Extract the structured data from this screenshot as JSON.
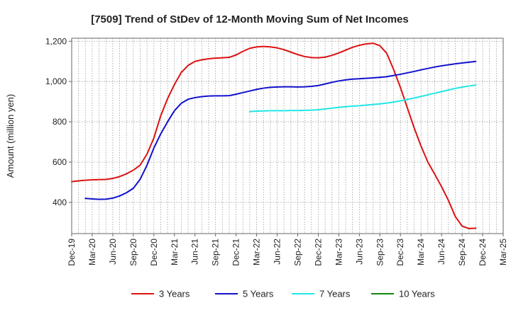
{
  "chart_data": {
    "type": "line",
    "title": "[7509]  Trend of StDev of 12-Month Moving Sum of Net Incomes",
    "xlabel": "",
    "ylabel": "Amount (million yen)",
    "ylim": [
      245,
      1215
    ],
    "yticks": [
      400,
      600,
      800,
      1000,
      1200
    ],
    "ytick_labels": [
      "400",
      "600",
      "800",
      "1,000",
      "1,200"
    ],
    "xlim": [
      "2019-12",
      "2025-03"
    ],
    "xtick_labels": [
      "Dec-19",
      "Mar-20",
      "Jun-20",
      "Sep-20",
      "Dec-20",
      "Mar-21",
      "Jun-21",
      "Sep-21",
      "Dec-21",
      "Mar-22",
      "Jun-22",
      "Sep-22",
      "Dec-22",
      "Mar-23",
      "Jun-23",
      "Sep-23",
      "Dec-23",
      "Mar-24",
      "Jun-24",
      "Sep-24",
      "Dec-24",
      "Mar-25"
    ],
    "grid": true,
    "legend_position": "bottom",
    "series": [
      {
        "name": "3 Years",
        "color": "#dd1111",
        "points": [
          [
            "2019-12",
            503
          ],
          [
            "2020-01",
            507
          ],
          [
            "2020-02",
            510
          ],
          [
            "2020-03",
            512
          ],
          [
            "2020-04",
            513
          ],
          [
            "2020-05",
            514
          ],
          [
            "2020-06",
            519
          ],
          [
            "2020-07",
            528
          ],
          [
            "2020-08",
            542
          ],
          [
            "2020-09",
            560
          ],
          [
            "2020-10",
            585
          ],
          [
            "2020-11",
            640
          ],
          [
            "2020-12",
            720
          ],
          [
            "2021-01",
            830
          ],
          [
            "2021-02",
            915
          ],
          [
            "2021-03",
            985
          ],
          [
            "2021-04",
            1045
          ],
          [
            "2021-05",
            1080
          ],
          [
            "2021-06",
            1100
          ],
          [
            "2021-07",
            1108
          ],
          [
            "2021-08",
            1113
          ],
          [
            "2021-09",
            1116
          ],
          [
            "2021-10",
            1118
          ],
          [
            "2021-11",
            1120
          ],
          [
            "2021-12",
            1132
          ],
          [
            "2022-01",
            1150
          ],
          [
            "2022-02",
            1165
          ],
          [
            "2022-03",
            1172
          ],
          [
            "2022-04",
            1174
          ],
          [
            "2022-05",
            1172
          ],
          [
            "2022-06",
            1167
          ],
          [
            "2022-07",
            1158
          ],
          [
            "2022-08",
            1146
          ],
          [
            "2022-09",
            1134
          ],
          [
            "2022-10",
            1124
          ],
          [
            "2022-11",
            1119
          ],
          [
            "2022-12",
            1118
          ],
          [
            "2023-01",
            1121
          ],
          [
            "2023-02",
            1130
          ],
          [
            "2023-03",
            1142
          ],
          [
            "2023-04",
            1156
          ],
          [
            "2023-05",
            1170
          ],
          [
            "2023-06",
            1180
          ],
          [
            "2023-07",
            1187
          ],
          [
            "2023-08",
            1190
          ],
          [
            "2023-09",
            1178
          ],
          [
            "2023-10",
            1140
          ],
          [
            "2023-11",
            1060
          ],
          [
            "2023-12",
            970
          ],
          [
            "2024-01",
            870
          ],
          [
            "2024-02",
            770
          ],
          [
            "2024-03",
            680
          ],
          [
            "2024-04",
            600
          ],
          [
            "2024-05",
            540
          ],
          [
            "2024-06",
            478
          ],
          [
            "2024-07",
            410
          ],
          [
            "2024-08",
            330
          ],
          [
            "2024-09",
            282
          ],
          [
            "2024-10",
            270
          ],
          [
            "2024-11",
            272
          ]
        ]
      },
      {
        "name": "5 Years",
        "color": "#1111cc",
        "points": [
          [
            "2020-02",
            420
          ],
          [
            "2020-03",
            417
          ],
          [
            "2020-04",
            415
          ],
          [
            "2020-05",
            416
          ],
          [
            "2020-06",
            421
          ],
          [
            "2020-07",
            432
          ],
          [
            "2020-08",
            448
          ],
          [
            "2020-09",
            470
          ],
          [
            "2020-10",
            515
          ],
          [
            "2020-11",
            585
          ],
          [
            "2020-12",
            670
          ],
          [
            "2021-01",
            740
          ],
          [
            "2021-02",
            800
          ],
          [
            "2021-03",
            855
          ],
          [
            "2021-04",
            892
          ],
          [
            "2021-05",
            912
          ],
          [
            "2021-06",
            920
          ],
          [
            "2021-07",
            925
          ],
          [
            "2021-08",
            928
          ],
          [
            "2021-09",
            929
          ],
          [
            "2021-10",
            929
          ],
          [
            "2021-11",
            930
          ],
          [
            "2021-12",
            937
          ],
          [
            "2022-01",
            945
          ],
          [
            "2022-02",
            953
          ],
          [
            "2022-03",
            961
          ],
          [
            "2022-04",
            967
          ],
          [
            "2022-05",
            971
          ],
          [
            "2022-06",
            973
          ],
          [
            "2022-07",
            974
          ],
          [
            "2022-08",
            974
          ],
          [
            "2022-09",
            973
          ],
          [
            "2022-10",
            974
          ],
          [
            "2022-11",
            976
          ],
          [
            "2022-12",
            980
          ],
          [
            "2023-01",
            988
          ],
          [
            "2023-02",
            996
          ],
          [
            "2023-03",
            1003
          ],
          [
            "2023-04",
            1008
          ],
          [
            "2023-05",
            1012
          ],
          [
            "2023-06",
            1014
          ],
          [
            "2023-07",
            1016
          ],
          [
            "2023-08",
            1018
          ],
          [
            "2023-09",
            1021
          ],
          [
            "2023-10",
            1024
          ],
          [
            "2023-11",
            1030
          ],
          [
            "2023-12",
            1036
          ],
          [
            "2024-01",
            1043
          ],
          [
            "2024-02",
            1050
          ],
          [
            "2024-03",
            1058
          ],
          [
            "2024-04",
            1065
          ],
          [
            "2024-05",
            1072
          ],
          [
            "2024-06",
            1078
          ],
          [
            "2024-07",
            1083
          ],
          [
            "2024-08",
            1088
          ],
          [
            "2024-09",
            1092
          ],
          [
            "2024-10",
            1096
          ],
          [
            "2024-11",
            1100
          ]
        ]
      },
      {
        "name": "7 Years",
        "color": "#22e6e6",
        "points": [
          [
            "2022-02",
            851
          ],
          [
            "2022-03",
            853
          ],
          [
            "2022-04",
            854
          ],
          [
            "2022-05",
            855
          ],
          [
            "2022-06",
            855
          ],
          [
            "2022-07",
            855
          ],
          [
            "2022-08",
            856
          ],
          [
            "2022-09",
            856
          ],
          [
            "2022-10",
            857
          ],
          [
            "2022-11",
            858
          ],
          [
            "2022-12",
            860
          ],
          [
            "2023-01",
            864
          ],
          [
            "2023-02",
            868
          ],
          [
            "2023-03",
            872
          ],
          [
            "2023-04",
            875
          ],
          [
            "2023-05",
            878
          ],
          [
            "2023-06",
            880
          ],
          [
            "2023-07",
            883
          ],
          [
            "2023-08",
            886
          ],
          [
            "2023-09",
            889
          ],
          [
            "2023-10",
            893
          ],
          [
            "2023-11",
            898
          ],
          [
            "2023-12",
            904
          ],
          [
            "2024-01",
            911
          ],
          [
            "2024-02",
            918
          ],
          [
            "2024-03",
            926
          ],
          [
            "2024-04",
            934
          ],
          [
            "2024-05",
            942
          ],
          [
            "2024-06",
            950
          ],
          [
            "2024-07",
            958
          ],
          [
            "2024-08",
            966
          ],
          [
            "2024-09",
            972
          ],
          [
            "2024-10",
            978
          ],
          [
            "2024-11",
            982
          ]
        ]
      },
      {
        "name": "10 Years",
        "color": "#118811",
        "points": []
      }
    ]
  }
}
